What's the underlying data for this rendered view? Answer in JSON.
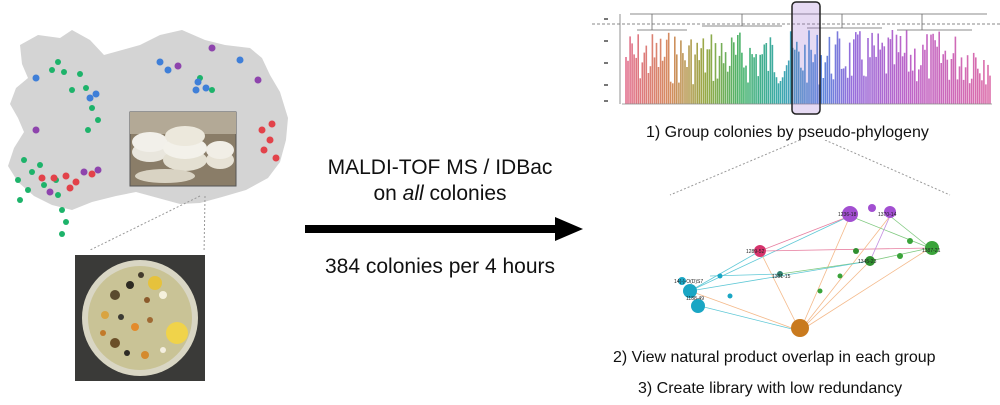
{
  "center": {
    "method_line1": "MALDI-TOF MS / IDBac",
    "method_line2_prefix": "on ",
    "method_line2_italic": "all",
    "method_line2_suffix": " colonies",
    "throughput": "384 colonies per 4 hours"
  },
  "steps": {
    "step1": "1) Group colonies  by pseudo-phylogeny",
    "step2": "2) View natural product overlap in each group",
    "step3": "3) Create library with low redundancy"
  },
  "network_labels": [
    "1236-18",
    "1370-14",
    "1289-52",
    "1345-23",
    "1387-21",
    "1301-15",
    "14(-)-O(D)S7",
    "1188-49"
  ],
  "colors": {
    "map_land": "#d4d4d4",
    "green": "#1db36a",
    "blue": "#3f7fd8",
    "purple": "#8e44ad",
    "red": "#e2424a",
    "arrow": "#000000"
  }
}
